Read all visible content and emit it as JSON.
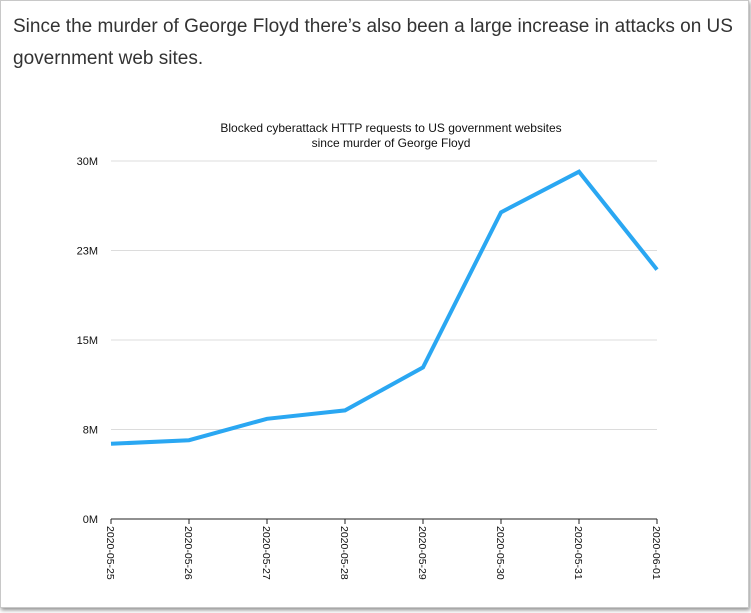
{
  "intro_text": "Since the murder of George Floyd there’s also been a large increase in attacks on US government web sites.",
  "chart_data": {
    "type": "line",
    "title": "Blocked cyberattack HTTP requests to US government websites",
    "subtitle": "since murder of George Floyd",
    "xlabel": "",
    "ylabel": "",
    "x": [
      "2020-05-25",
      "2020-05-26",
      "2020-05-27",
      "2020-05-28",
      "2020-05-29",
      "2020-05-30",
      "2020-05-31",
      "2020-06-01"
    ],
    "series": [
      {
        "values": [
          6.3,
          6.6,
          8.4,
          9.1,
          12.7,
          25.7,
          29.1,
          20.9
        ],
        "color": "#2aa7f2"
      }
    ],
    "y_unit": "M",
    "yticks": [
      0,
      7.5,
      15,
      22.5,
      30
    ],
    "ytick_labels": [
      "0M",
      "8M",
      "15M",
      "23M",
      "30M"
    ],
    "ylim": [
      0,
      30
    ],
    "grid": true,
    "legend": "none"
  }
}
